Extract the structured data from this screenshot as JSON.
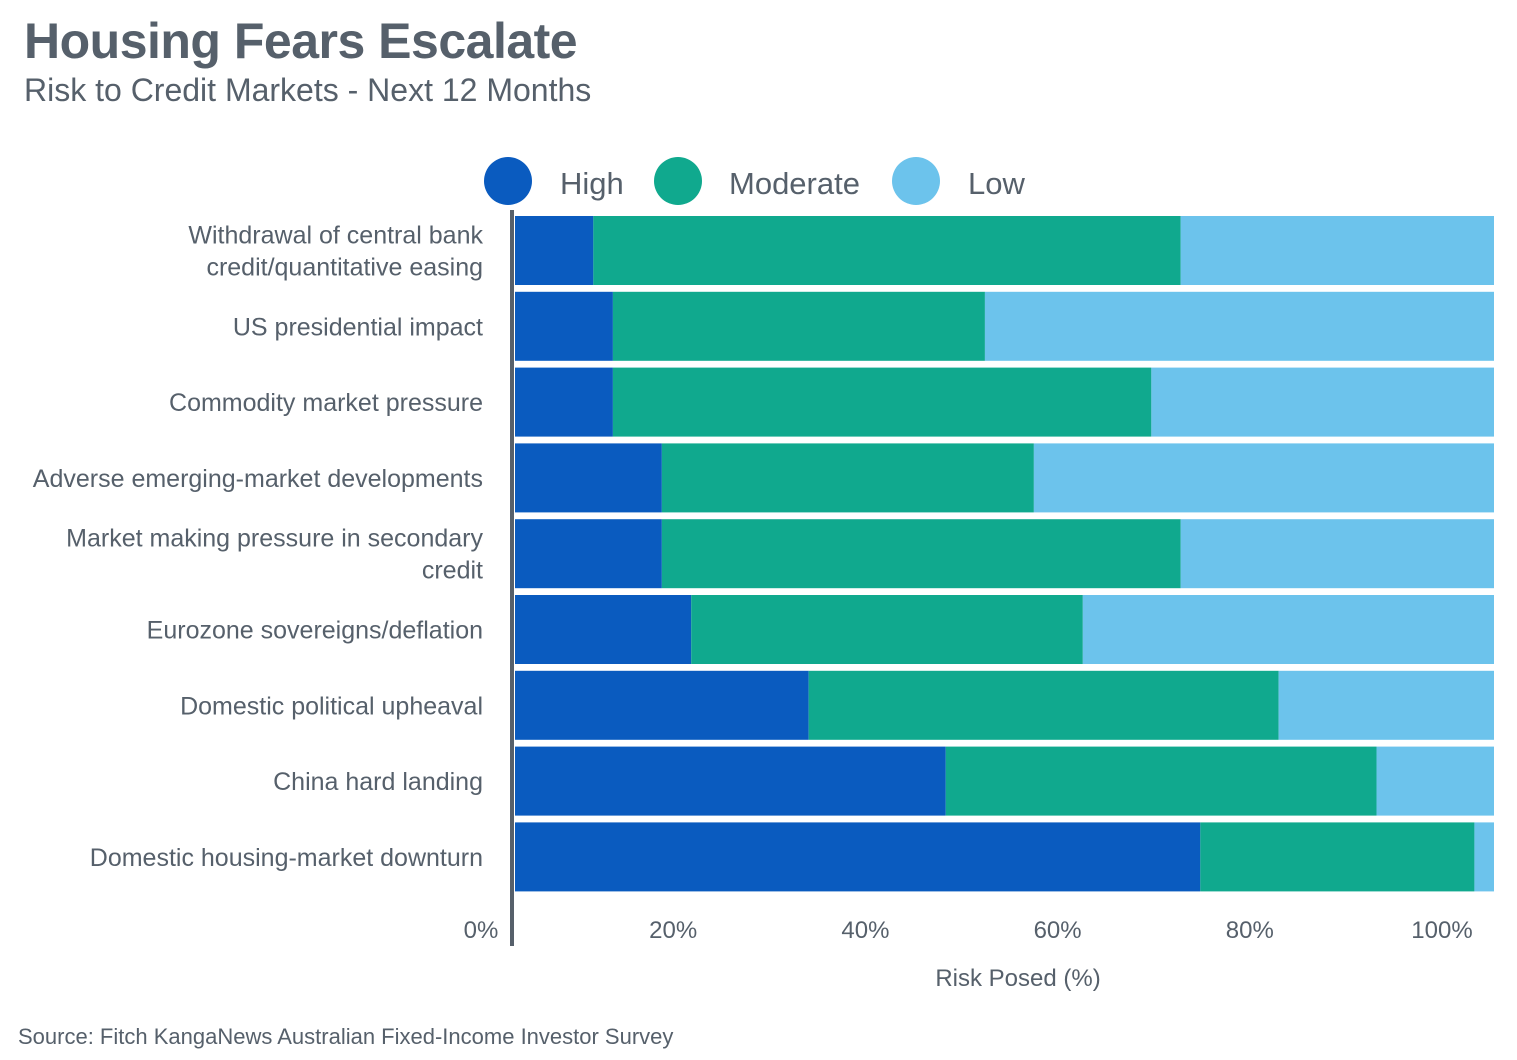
{
  "header": {
    "title": "Housing Fears Escalate",
    "subtitle": "Risk to Credit Markets - Next 12 Months"
  },
  "footer": {
    "source": "Source: Fitch KangaNews Australian Fixed-Income Investor Survey"
  },
  "colors": {
    "high": "#0a5bbf",
    "moderate": "#10a98e",
    "low": "#6cc3ec",
    "axis": "#56606b",
    "text": "#56606b"
  },
  "chart_data": {
    "type": "bar",
    "orientation": "horizontal",
    "stacked": true,
    "title": "Housing Fears Escalate",
    "subtitle": "Risk to Credit Markets - Next 12 Months",
    "xlabel": "Risk Posed (%)",
    "ylabel": "",
    "xlim": [
      0,
      100
    ],
    "xticks": [
      0,
      20,
      40,
      60,
      80,
      100
    ],
    "xtick_labels": [
      "0%",
      "20%",
      "40%",
      "60%",
      "80%",
      "100%"
    ],
    "legend_position": "top",
    "grid": false,
    "categories": [
      [
        "Withdrawal of central bank",
        "credit/quantitative easing"
      ],
      [
        "US presidential impact"
      ],
      [
        "Commodity market pressure"
      ],
      [
        "Adverse emerging-market developments"
      ],
      [
        "Market making pressure in secondary",
        "credit"
      ],
      [
        "Eurozone sovereigns/deflation"
      ],
      [
        "Domestic political upheaval"
      ],
      [
        "China hard landing"
      ],
      [
        "Domestic housing-market downturn"
      ]
    ],
    "series": [
      {
        "name": "High",
        "color": "#0a5bbf",
        "values": [
          8,
          10,
          10,
          15,
          15,
          18,
          30,
          44,
          70
        ]
      },
      {
        "name": "Moderate",
        "color": "#10a98e",
        "values": [
          60,
          38,
          55,
          38,
          53,
          40,
          48,
          44,
          28
        ]
      },
      {
        "name": "Low",
        "color": "#6cc3ec",
        "values": [
          32,
          52,
          35,
          47,
          32,
          42,
          22,
          12,
          2
        ]
      }
    ]
  }
}
